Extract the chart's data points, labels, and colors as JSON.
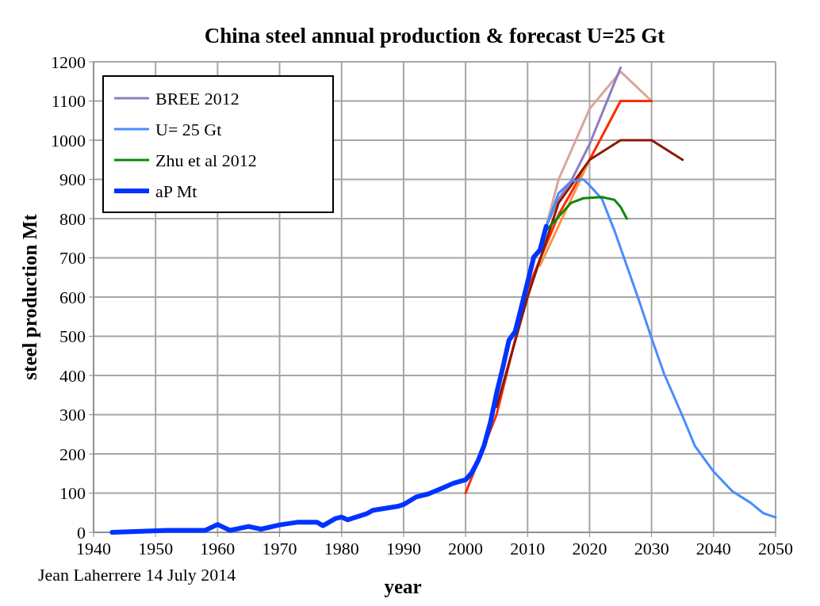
{
  "chart_data": {
    "type": "line",
    "title": "China steel annual production & forecast U=25 Gt",
    "xlabel": "year",
    "ylabel": "steel production Mt",
    "annotations": [
      "Jean Laherrere 14 July 2014"
    ],
    "xlim": [
      1940,
      2050
    ],
    "xticks": [
      1940,
      1950,
      1960,
      1970,
      1980,
      1990,
      2000,
      2010,
      2020,
      2030,
      2040,
      2050
    ],
    "ylim": [
      0,
      1200
    ],
    "yticks": [
      0,
      100,
      200,
      300,
      400,
      500,
      600,
      700,
      800,
      900,
      1000,
      1100,
      1200
    ],
    "grid": true,
    "legend": "top left",
    "line_style": "solid",
    "series": [
      {
        "color": "#d9a59c",
        "x": [
          2012,
          2015,
          2020,
          2025,
          2030
        ],
        "values": [
          720,
          900,
          1080,
          1175,
          1100
        ]
      },
      {
        "name": "BREE 2012",
        "color": "#8e7cc3",
        "x": [
          2013,
          2015,
          2017,
          2020,
          2025
        ],
        "values": [
          780,
          850,
          895,
          990,
          1185
        ]
      },
      {
        "color": "#ff2a00",
        "x": [
          2000,
          2005,
          2010,
          2015,
          2020,
          2025,
          2030
        ],
        "values": [
          100,
          300,
          620,
          810,
          950,
          1100,
          1100
        ]
      },
      {
        "color": "#f79646",
        "x": [
          2012,
          2020
        ],
        "values": [
          680,
          950
        ]
      },
      {
        "color": "#8b1a00",
        "x": [
          2005,
          2010,
          2015,
          2020,
          2025,
          2030,
          2035
        ],
        "values": [
          320,
          600,
          840,
          950,
          1000,
          1000,
          950
        ]
      },
      {
        "name": "U= 25 Gt",
        "color": "#4a8cff",
        "x": [
          2013,
          2015,
          2017,
          2019,
          2020,
          2022,
          2024,
          2026,
          2028,
          2030,
          2032,
          2035,
          2037,
          2040,
          2043,
          2046,
          2048,
          2050
        ],
        "values": [
          780,
          865,
          895,
          900,
          885,
          850,
          770,
          680,
          590,
          495,
          405,
          296,
          220,
          155,
          105,
          75,
          49,
          38
        ]
      },
      {
        "name": "Zhu et al 2012",
        "color": "#0a8a0a",
        "x": [
          2013,
          2015,
          2017,
          2019,
          2022,
          2024,
          2025,
          2026
        ],
        "values": [
          770,
          805,
          840,
          852,
          855,
          848,
          830,
          800
        ]
      },
      {
        "name": "aP Mt",
        "color": "#0033ff",
        "x": [
          1943,
          1952,
          1958,
          1960,
          1962,
          1965,
          1967,
          1970,
          1973,
          1976,
          1977,
          1979,
          1980,
          1981,
          1982,
          1984,
          1985,
          1987,
          1989,
          1990,
          1992,
          1994,
          1996,
          1998,
          2000,
          2001,
          2002,
          2003,
          2004,
          2005,
          2006,
          2007,
          2008,
          2009,
          2010,
          2011,
          2012,
          2013
        ],
        "values": [
          0,
          5,
          5,
          20,
          5,
          15,
          8,
          19,
          26,
          26,
          17,
          35,
          39,
          32,
          37,
          47,
          56,
          61,
          66,
          71,
          90,
          98,
          111,
          125,
          134,
          152,
          182,
          222,
          280,
          355,
          420,
          490,
          512,
          575,
          638,
          702,
          720,
          780
        ]
      }
    ]
  }
}
